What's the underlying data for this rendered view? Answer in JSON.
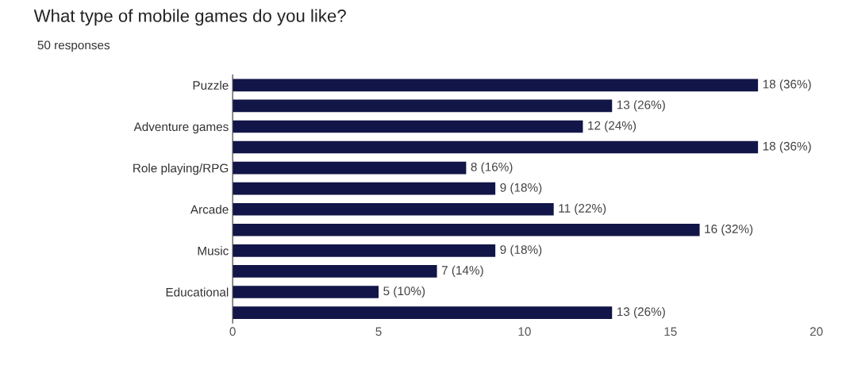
{
  "chart_data": {
    "type": "bar",
    "orientation": "horizontal",
    "title": "What type of mobile games do you like?",
    "subtitle": "50 responses",
    "categories": [
      "Puzzle",
      null,
      "Adventure games",
      null,
      "Role playing/RPG",
      null,
      "Arcade",
      null,
      "Music",
      null,
      "Educational",
      null
    ],
    "values": [
      18,
      13,
      12,
      18,
      8,
      9,
      11,
      16,
      9,
      7,
      5,
      13
    ],
    "value_labels": [
      "18 (36%)",
      "13 (26%)",
      "12 (24%)",
      "18 (36%)",
      "8 (16%)",
      "9 (18%)",
      "11 (22%)",
      "16 (32%)",
      "9 (18%)",
      "7 (14%)",
      "5 (10%)",
      "13 (26%)"
    ],
    "color": "#121547",
    "xlim": [
      0,
      20
    ],
    "xticks": [
      0,
      5,
      10,
      15,
      20
    ],
    "grid": false,
    "legend": false
  }
}
